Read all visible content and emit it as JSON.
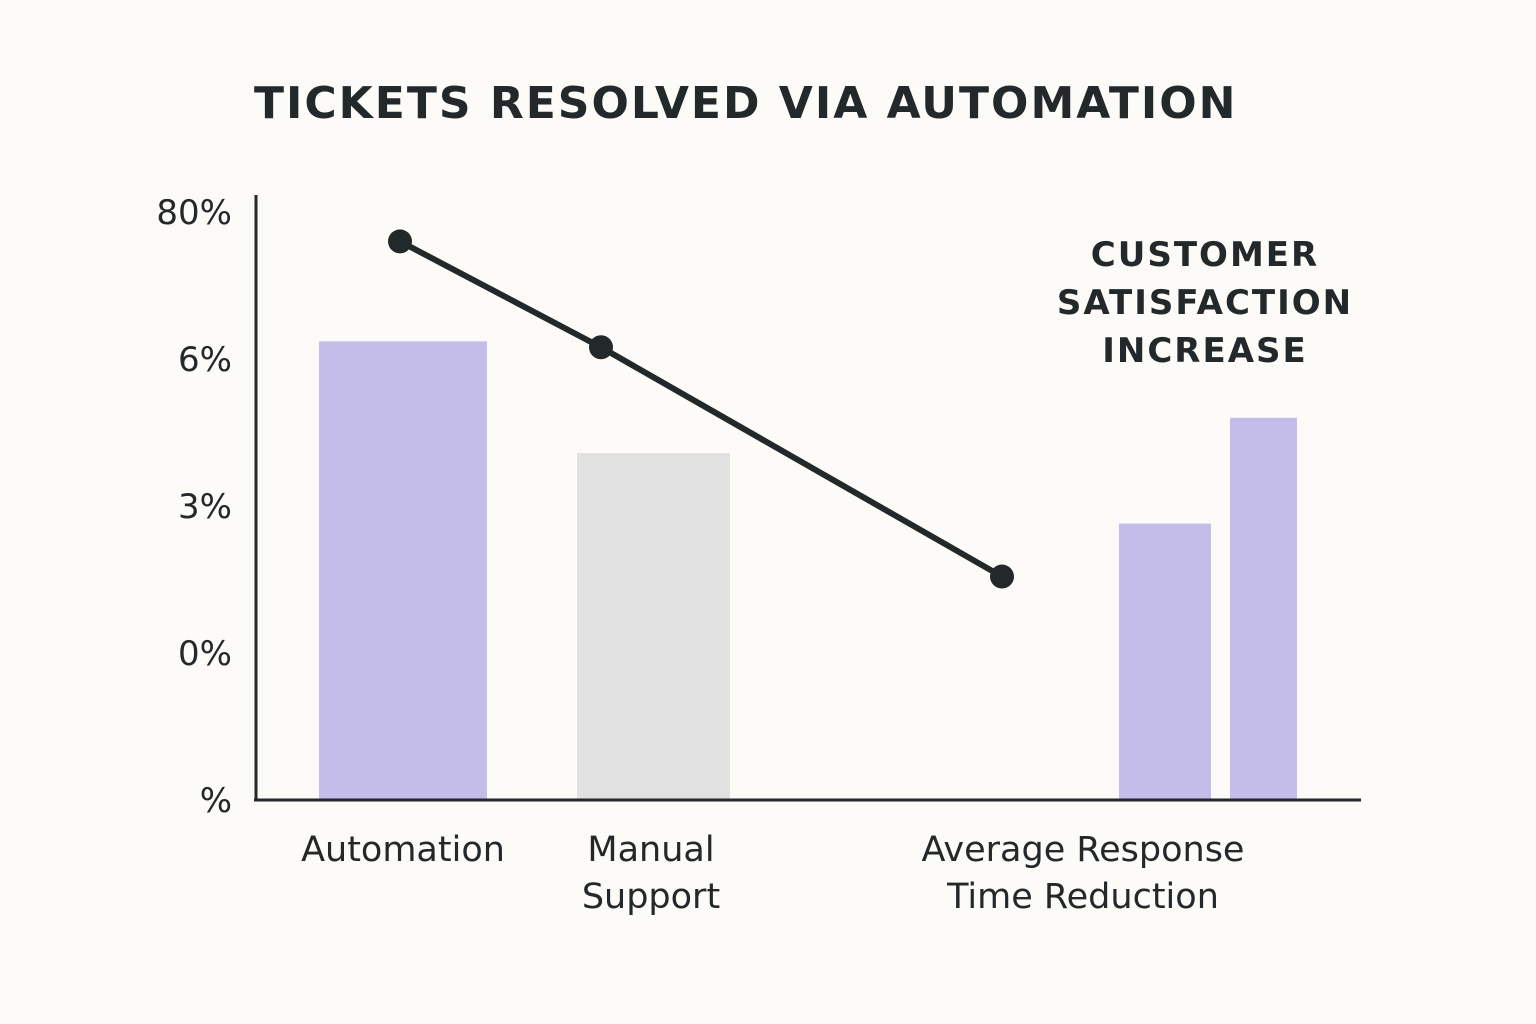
{
  "chart_data": {
    "type": "bar",
    "title": "TICKETS RESOLVED VIA AUTOMATION",
    "y_tick_labels": [
      "80%",
      "6%",
      "3%",
      "0%",
      "%"
    ],
    "grid": false,
    "categories": [
      {
        "lines": [
          "Automation"
        ]
      },
      {
        "lines": [
          "Manual",
          "Support"
        ]
      },
      {
        "lines": [
          "Average Response",
          "Time Reduction"
        ]
      }
    ],
    "bars": [
      {
        "category": "Automation",
        "value": 0.78,
        "color": "#c4bdea"
      },
      {
        "category": "Manual Support",
        "value": 0.59,
        "color": "#e2e1e1"
      },
      {
        "category": "Average Response Time Reduction",
        "value": 0.47,
        "color": "#c4bdea"
      },
      {
        "category": "Average Response Time Reduction",
        "value": 0.65,
        "color": "#c4bdea"
      }
    ],
    "line": {
      "color": "#23282b",
      "points": [
        {
          "category": "Automation",
          "value": 0.95
        },
        {
          "category": "Manual Support",
          "value": 0.77
        },
        {
          "category": "Average Response Time Reduction",
          "value": 0.38
        }
      ]
    },
    "annotation": {
      "lines": [
        "CUSTOMER",
        "SATISFACTION",
        "INCREASE"
      ]
    }
  }
}
